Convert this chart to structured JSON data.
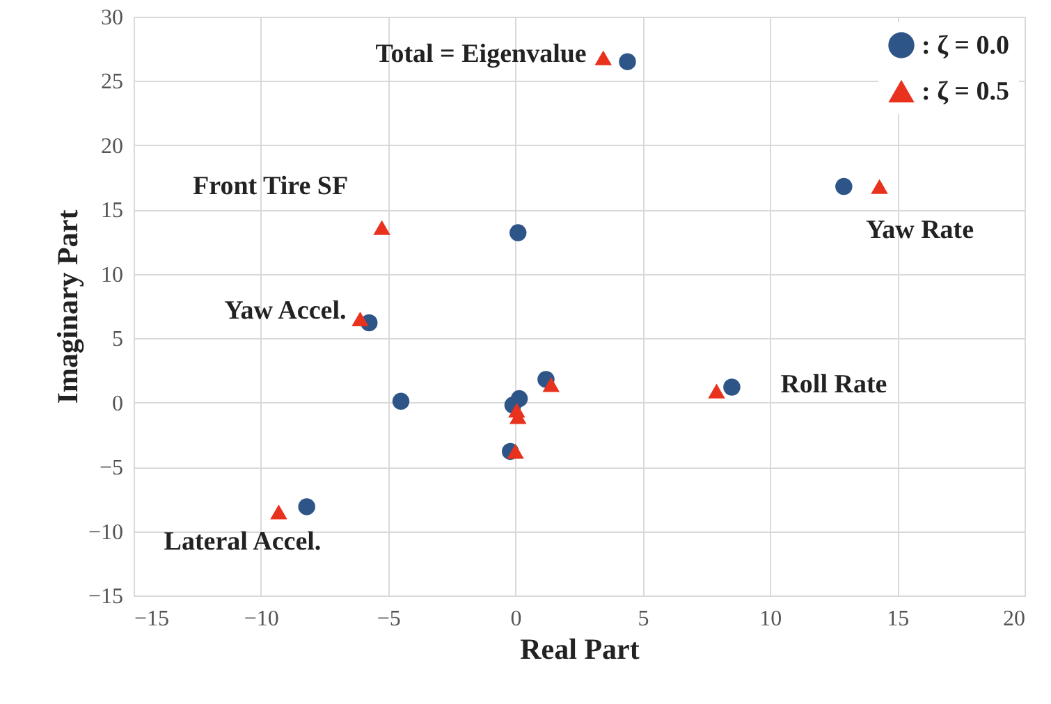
{
  "chart_data": {
    "type": "scatter",
    "xlabel": "Real Part",
    "ylabel": "Imaginary Part",
    "xlim": [
      -15,
      20
    ],
    "xticks": [
      -15,
      -10,
      -5,
      0,
      5,
      10,
      15,
      20
    ],
    "ylim": [
      -15,
      30
    ],
    "yticks": [
      -15,
      -10,
      -5,
      0,
      5,
      10,
      15,
      20,
      25,
      30
    ],
    "grid": true,
    "legend": "top right",
    "series": [
      {
        "name": ": ζ = 0.0",
        "color": "#2e5587",
        "marker": "circle",
        "x": [
          4.4,
          12.9,
          0.1,
          -5.75,
          -4.5,
          1.2,
          0.15,
          -0.1,
          8.5,
          -0.2,
          -8.2
        ],
        "values": [
          26.5,
          16.8,
          13.2,
          6.2,
          0.1,
          1.8,
          0.3,
          -0.2,
          1.2,
          -3.8,
          -8.1
        ]
      },
      {
        "name": ": ζ = 0.5",
        "color": "#e8321e",
        "marker": "triangle",
        "x": [
          3.45,
          14.3,
          -5.25,
          -6.1,
          1.4,
          0.05,
          0.1,
          7.9,
          0.0,
          -9.3
        ],
        "values": [
          26.8,
          16.8,
          13.6,
          6.5,
          1.4,
          -0.6,
          -1.1,
          0.9,
          -3.8,
          -8.5
        ]
      }
    ],
    "annotations": [
      {
        "text": "Total = Eigenvalue",
        "x": 3.45,
        "y": 26.8
      },
      {
        "text": "Front Tire SF",
        "x": -5.25,
        "y": 13.6
      },
      {
        "text": "Yaw Rate",
        "x": 14.3,
        "y": 16.8
      },
      {
        "text": "Yaw Accel.",
        "x": -6.1,
        "y": 6.5
      },
      {
        "text": "Roll Rate",
        "x": 8.5,
        "y": 1.2
      },
      {
        "text": "Lateral Accel.",
        "x": -9.3,
        "y": -8.5
      }
    ]
  }
}
